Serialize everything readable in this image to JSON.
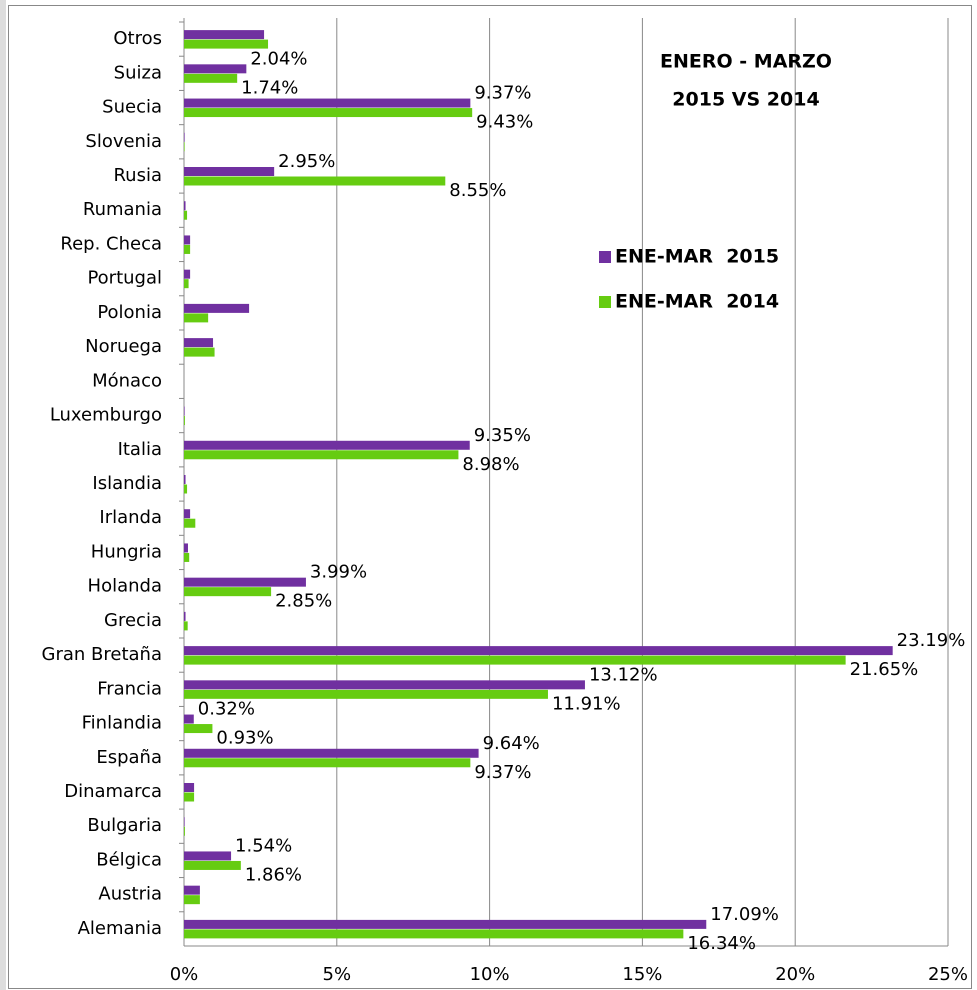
{
  "chart_data": {
    "type": "hbar",
    "title_lines": [
      "ENERO - MARZO",
      "2015 VS 2014"
    ],
    "categories": [
      "Otros",
      "Suiza",
      "Suecia",
      "Slovenia",
      "Rusia",
      "Rumania",
      "Rep. Checa",
      "Portugal",
      "Polonia",
      "Noruega",
      "Mónaco",
      "Luxemburgo",
      "Italia",
      "Islandia",
      "Irlanda",
      "Hungria",
      "Holanda",
      "Grecia",
      "Gran Bretaña",
      "Francia",
      "Finlandia",
      "España",
      "Dinamarca",
      "Bulgaria",
      "Bélgica",
      "Austria",
      "Alemania"
    ],
    "series": [
      {
        "name": "ENE-MAR  2015",
        "color": "#7030a0",
        "values": [
          2.62,
          2.04,
          9.37,
          0.02,
          2.95,
          0.05,
          0.2,
          0.2,
          2.13,
          0.95,
          0,
          0.02,
          9.35,
          0.05,
          0.2,
          0.13,
          3.99,
          0.05,
          23.19,
          13.12,
          0.32,
          9.64,
          0.33,
          0.02,
          1.54,
          0.52,
          17.09
        ],
        "value_labels": [
          null,
          "2.04%",
          "9.37%",
          null,
          "2.95%",
          null,
          null,
          null,
          null,
          null,
          null,
          null,
          "9.35%",
          null,
          null,
          null,
          "3.99%",
          null,
          "23.19%",
          "13.12%",
          "0.32%",
          "9.64%",
          null,
          null,
          "1.54%",
          null,
          "17.09%"
        ]
      },
      {
        "name": "ENE-MAR  2014",
        "color": "#66cc11",
        "values": [
          2.75,
          1.74,
          9.43,
          0.02,
          8.55,
          0.1,
          0.2,
          0.15,
          0.79,
          1.0,
          0,
          0.03,
          8.98,
          0.1,
          0.37,
          0.17,
          2.85,
          0.12,
          21.65,
          11.91,
          0.93,
          9.37,
          0.33,
          0.03,
          1.86,
          0.52,
          16.34
        ],
        "value_labels": [
          null,
          "1.74%",
          "9.43%",
          null,
          "8.55%",
          null,
          null,
          null,
          null,
          null,
          null,
          null,
          "8.98%",
          null,
          null,
          null,
          "2.85%",
          null,
          "21.65%",
          "11.91%",
          "0.93%",
          "9.37%",
          null,
          null,
          "1.86%",
          null,
          "16.34%"
        ]
      }
    ],
    "xlim": [
      0,
      25
    ],
    "xticks": [
      {
        "value": 0,
        "label": "0%"
      },
      {
        "value": 5,
        "label": "5%"
      },
      {
        "value": 10,
        "label": "10%"
      },
      {
        "value": 15,
        "label": "15%"
      },
      {
        "value": 20,
        "label": "20%"
      },
      {
        "value": 25,
        "label": "25%"
      }
    ],
    "grid": true
  }
}
